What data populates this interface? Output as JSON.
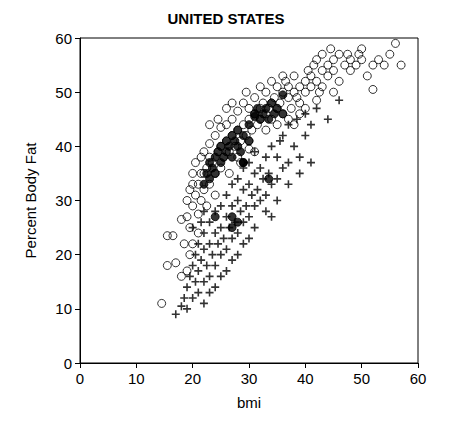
{
  "chart_data": {
    "type": "scatter",
    "title": "UNITED STATES",
    "x_label": "bmi",
    "y_label": "Percent Body Fat",
    "xlim": [
      0,
      60
    ],
    "xticks": [
      0,
      10,
      20,
      30,
      40,
      50,
      60
    ],
    "ylim": [
      0,
      60
    ],
    "yticks": [
      0,
      10,
      20,
      30,
      40,
      50,
      60
    ],
    "grid": false,
    "series": [
      {
        "marker": "circle-open",
        "color": "#000000",
        "x": [
          14.5,
          15.5,
          16.5,
          15.5,
          17,
          18,
          18.5,
          19,
          19,
          19.5,
          19.5,
          20,
          20,
          20.5,
          20.5,
          21,
          21,
          21.5,
          21.5,
          22,
          22,
          22,
          22.5,
          23,
          23,
          23,
          23.5,
          24,
          24,
          24.5,
          25,
          25,
          25,
          25.5,
          26,
          26,
          26.5,
          27,
          27,
          27.5,
          28,
          28,
          28.5,
          29,
          29,
          29.5,
          30,
          30,
          30.5,
          31,
          31,
          31.5,
          32,
          32,
          32.5,
          33,
          33,
          33.5,
          34,
          34,
          34.5,
          35,
          35,
          35.5,
          36,
          36,
          36.5,
          37,
          37,
          37.5,
          38,
          38,
          38.5,
          39,
          39,
          40,
          40,
          40.5,
          41,
          41,
          41.5,
          42,
          42,
          42.5,
          43,
          43,
          44,
          44,
          44.5,
          45,
          45,
          46,
          46,
          47,
          47.5,
          48,
          49,
          49.5,
          50,
          51,
          52,
          52,
          53,
          54,
          55,
          56,
          57,
          26,
          27,
          29.5,
          31,
          33,
          35,
          37,
          28,
          24,
          22.5,
          21,
          20,
          19,
          18,
          19.5,
          30,
          39,
          36,
          34,
          32,
          40,
          43,
          24.5,
          23,
          21.5,
          20,
          26.5,
          28.5,
          30,
          45,
          48,
          50,
          42,
          38
        ],
        "values": [
          11,
          23.5,
          23.5,
          18,
          18.5,
          26.5,
          22,
          27,
          30,
          32,
          25,
          29,
          35,
          31,
          37,
          33,
          27.5,
          38,
          30,
          35,
          32,
          39,
          36,
          38,
          33,
          40.5,
          37,
          42,
          35,
          39,
          40,
          36,
          43.5,
          38,
          41,
          44,
          39,
          42,
          45,
          40,
          43,
          46.5,
          41,
          44,
          48,
          42,
          45,
          47,
          43,
          46,
          49,
          44,
          47,
          45,
          48,
          46,
          50,
          47,
          48,
          45,
          49,
          51,
          47,
          48,
          50,
          46,
          52,
          49,
          51,
          47,
          50,
          53,
          49,
          51,
          48,
          52,
          50,
          54,
          51,
          53,
          55,
          52,
          56,
          50,
          54,
          57,
          53,
          55,
          58,
          54,
          56,
          52,
          57,
          55,
          57,
          56,
          55,
          57,
          56,
          53,
          55,
          50.5,
          56,
          55,
          57,
          59,
          55,
          47,
          48,
          50,
          39,
          43,
          44,
          45,
          38,
          31,
          29,
          24,
          22,
          17,
          16,
          20,
          41,
          46,
          53,
          52,
          51,
          47,
          51,
          45,
          44,
          35,
          33,
          35,
          37,
          39.5,
          50,
          54,
          58,
          48.5,
          44
        ]
      },
      {
        "marker": "plus",
        "color": "#000000",
        "x": [
          17,
          18,
          18.5,
          19,
          19,
          19.5,
          20,
          20,
          20.5,
          20.5,
          21,
          21,
          21,
          21.5,
          22,
          22,
          22,
          22.5,
          23,
          23,
          23,
          23.5,
          24,
          24,
          24,
          24.5,
          25,
          25,
          25,
          25.5,
          26,
          26,
          26,
          26.5,
          27,
          27,
          27,
          27.5,
          28,
          28,
          28,
          28.5,
          29,
          29,
          29,
          29.5,
          30,
          30,
          30,
          30.5,
          31,
          31,
          31,
          31.5,
          32,
          32,
          32.5,
          33,
          33,
          33.5,
          34,
          34,
          35,
          35,
          35.5,
          36,
          36,
          37,
          37,
          38,
          38.5,
          39,
          40,
          40,
          41,
          42,
          44,
          46,
          27,
          26,
          25,
          24,
          22,
          23,
          29,
          31,
          33,
          28,
          30,
          35,
          37,
          39,
          41,
          34,
          20,
          22,
          21.5
        ],
        "values": [
          9,
          10.5,
          12,
          10,
          14,
          16,
          12,
          18,
          15,
          20,
          13,
          17,
          22,
          19,
          15,
          21,
          24,
          18,
          16,
          22,
          26,
          20,
          18,
          24,
          28,
          22,
          20,
          25,
          29,
          23,
          21,
          27,
          31,
          25,
          23,
          29,
          33,
          26,
          24,
          30,
          34,
          28,
          26,
          32,
          36,
          29,
          27,
          33,
          37,
          31,
          29,
          35,
          39,
          32,
          30,
          36,
          34,
          31,
          38,
          35,
          33,
          40,
          34,
          38,
          41,
          36,
          42,
          37,
          44,
          40,
          45,
          38,
          42,
          46,
          44,
          47,
          45,
          48.5,
          19,
          17,
          16,
          14,
          11,
          13,
          22,
          25,
          28,
          20,
          23,
          30,
          33,
          35,
          37,
          27,
          25,
          28,
          26
        ]
      },
      {
        "marker": "circle",
        "color": "#000000",
        "x": [
          22,
          22.5,
          23,
          23,
          23.5,
          24,
          24,
          24.5,
          25,
          25,
          25.5,
          26,
          26,
          26.5,
          27,
          27,
          27.5,
          28,
          28,
          28.5,
          29,
          29,
          30,
          30,
          31,
          31.5,
          32,
          32.5,
          33,
          33.5,
          34,
          34.5,
          35,
          36,
          36,
          24,
          27,
          27,
          28,
          33.5,
          29,
          31
        ],
        "values": [
          33,
          35,
          34,
          37,
          36,
          38,
          35,
          39,
          37,
          40,
          38,
          39,
          41,
          40,
          38,
          42,
          41,
          40,
          43,
          39,
          42,
          37,
          44,
          41,
          46,
          47,
          45,
          46,
          47,
          45,
          48,
          46,
          47,
          49.5,
          46,
          27,
          27,
          25,
          26,
          34,
          37,
          45.5
        ]
      }
    ]
  }
}
